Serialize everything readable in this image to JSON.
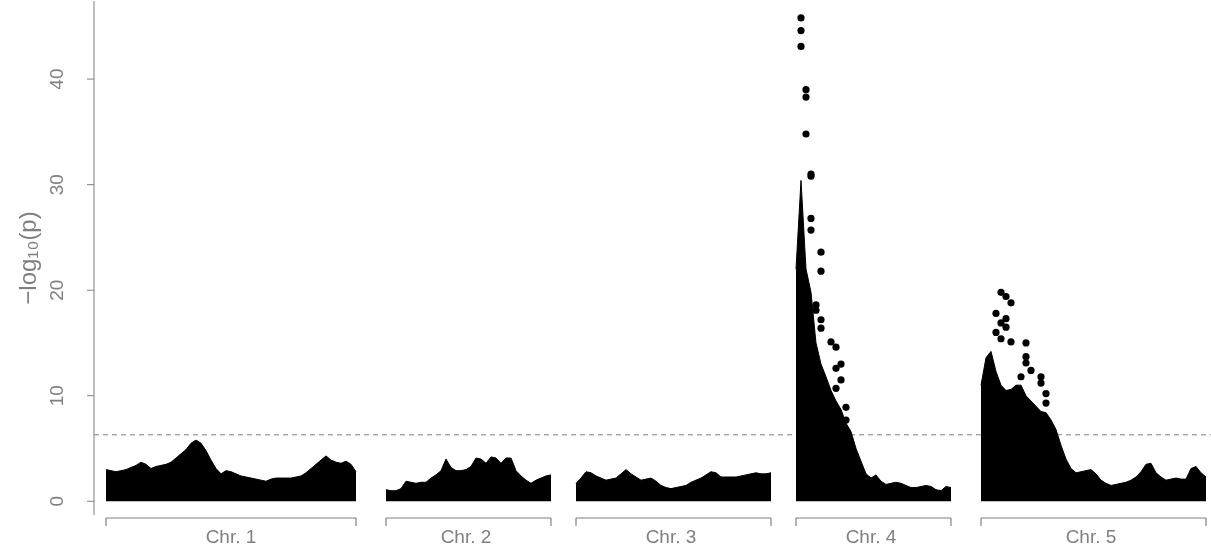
{
  "chart_data": {
    "type": "scatter",
    "ylabel": "−log₁₀(p)",
    "categories": [
      null,
      null,
      null,
      null,
      null,
      null,
      null,
      null,
      null,
      null,
      null,
      null,
      null,
      null,
      null,
      null,
      null,
      null,
      null,
      null,
      null,
      null,
      null,
      null,
      null,
      "Chr. 1",
      null,
      null,
      null,
      null,
      null,
      null,
      null,
      null,
      null,
      null,
      null,
      null,
      null,
      null,
      null,
      null,
      null,
      null,
      null,
      null,
      null,
      null,
      null,
      null,
      null,
      null,
      null,
      null,
      null,
      null,
      null,
      null,
      null,
      null,
      null,
      null,
      null,
      null,
      null,
      null,
      null,
      null,
      null,
      null,
      null,
      null,
      "Chr. 2",
      null,
      null,
      null,
      null,
      null,
      null,
      null,
      null,
      null,
      null,
      null,
      null,
      null,
      null,
      null,
      null,
      null,
      null,
      null,
      null,
      null,
      null,
      null,
      null,
      null,
      null,
      null,
      null,
      null,
      null,
      null,
      null,
      null,
      null,
      null,
      null,
      null,
      null,
      null,
      null,
      "Chr. 3",
      null,
      null,
      null,
      null,
      null,
      null,
      null,
      null,
      null,
      null,
      null,
      null,
      null,
      null,
      null,
      null,
      null,
      null,
      null,
      null,
      null,
      null,
      null,
      null,
      null,
      null,
      null,
      null,
      null,
      null,
      null,
      null,
      null,
      null,
      null,
      null,
      null,
      null,
      null,
      "Chr. 4",
      null,
      null,
      null,
      null,
      null,
      null,
      null,
      null,
      null,
      null,
      null,
      null,
      null,
      null,
      null,
      null,
      null,
      null,
      null,
      null,
      null,
      null,
      null,
      null,
      null,
      null,
      null,
      null,
      null,
      null,
      null,
      null,
      null,
      null,
      null,
      null,
      null,
      null,
      null,
      null,
      null,
      null,
      null,
      "Chr. 5",
      null,
      null,
      null,
      null,
      null,
      null,
      null,
      null,
      null,
      null,
      null,
      null,
      null,
      null,
      null,
      null,
      null,
      null,
      null,
      null,
      null,
      null,
      null
    ],
    "ylim": [
      -1.3,
      47.4
    ],
    "yticks": [
      0,
      10,
      20,
      30,
      40
    ],
    "ref_lines": [
      {
        "axis": "y",
        "value": 6.3,
        "color": "#808080",
        "line_style": "dashed"
      }
    ],
    "series": [
      {
        "type": "area",
        "color": "#000000",
        "values": [
          3.0,
          2.9,
          2.8,
          2.9,
          3.0,
          3.2,
          3.4,
          3.7,
          3.5,
          3.1,
          3.3,
          3.4,
          3.5,
          3.7,
          4.1,
          4.5,
          4.9,
          5.5,
          5.8,
          5.5,
          4.8,
          3.9,
          3.1,
          2.6,
          2.9,
          2.8,
          2.6,
          2.4,
          2.3,
          2.2,
          2.1,
          2.0,
          1.9,
          2.1,
          2.2,
          2.2,
          2.2,
          2.2,
          2.3,
          2.4,
          2.7,
          3.1,
          3.5,
          3.9,
          4.3,
          3.9,
          3.7,
          3.6,
          3.8,
          3.5,
          2.8,
          null,
          null,
          null,
          null,
          null,
          1.1,
          1.0,
          1.0,
          1.2,
          1.9,
          1.8,
          1.7,
          1.8,
          1.8,
          2.2,
          2.5,
          2.9,
          4.0,
          3.2,
          2.9,
          2.9,
          3.0,
          3.3,
          4.1,
          4.0,
          3.6,
          4.2,
          4.1,
          3.6,
          4.1,
          4.1,
          2.9,
          2.4,
          2.0,
          1.7,
          2.0,
          2.2,
          2.4,
          2.5,
          null,
          null,
          null,
          null,
          1.7,
          2.2,
          2.8,
          2.7,
          2.4,
          2.2,
          2.0,
          2.1,
          2.2,
          2.6,
          3.0,
          2.6,
          2.3,
          2.0,
          2.1,
          2.2,
          1.9,
          1.5,
          1.3,
          1.2,
          1.3,
          1.4,
          1.5,
          1.8,
          2.0,
          2.2,
          2.5,
          2.8,
          2.7,
          2.3,
          2.3,
          2.3,
          2.3,
          2.4,
          2.5,
          2.6,
          2.7,
          2.6,
          2.6,
          2.7,
          null,
          null,
          null,
          null,
          22.0,
          30.4,
          22.0,
          19.8,
          15.0,
          13.0,
          11.8,
          10.5,
          9.5,
          8.7,
          7.4,
          6.6,
          5.0,
          3.8,
          2.6,
          2.2,
          2.5,
          1.9,
          1.6,
          1.7,
          1.8,
          1.7,
          1.5,
          1.3,
          1.3,
          1.4,
          1.5,
          1.4,
          1.1,
          1.0,
          1.4,
          1.3,
          null,
          null,
          null,
          null,
          null,
          11.0,
          13.6,
          14.2,
          12.3,
          11.0,
          10.5,
          10.6,
          11.0,
          11.0,
          10.0,
          9.5,
          9.0,
          8.5,
          8.4,
          7.7,
          6.8,
          5.3,
          4.0,
          3.1,
          2.7,
          2.8,
          2.9,
          3.0,
          2.6,
          2.0,
          1.7,
          1.5,
          1.6,
          1.7,
          1.8,
          2.0,
          2.3,
          2.8,
          3.5,
          3.6,
          2.7,
          2.3,
          2.0,
          2.1,
          2.2,
          2.1,
          2.1,
          3.1,
          3.3,
          2.7,
          2.3
        ]
      },
      {
        "color": "#000000",
        "marker": "circle",
        "values": [
          null,
          null,
          null,
          null,
          null,
          null,
          null,
          null,
          null,
          null,
          null,
          null,
          null,
          null,
          null,
          null,
          null,
          null,
          null,
          null,
          null,
          null,
          null,
          null,
          null,
          null,
          null,
          null,
          null,
          null,
          null,
          null,
          null,
          null,
          null,
          null,
          null,
          null,
          null,
          null,
          null,
          null,
          null,
          null,
          null,
          null,
          null,
          null,
          null,
          null,
          null,
          null,
          null,
          null,
          null,
          null,
          null,
          null,
          null,
          null,
          null,
          null,
          null,
          null,
          null,
          null,
          null,
          null,
          null,
          null,
          null,
          null,
          null,
          null,
          null,
          null,
          null,
          null,
          null,
          null,
          null,
          null,
          null,
          null,
          null,
          null,
          null,
          null,
          null,
          null,
          null,
          null,
          null,
          null,
          null,
          null,
          null,
          null,
          null,
          null,
          null,
          null,
          null,
          null,
          null,
          null,
          null,
          null,
          null,
          null,
          null,
          null,
          null,
          null,
          null,
          null,
          null,
          null,
          null,
          null,
          null,
          null,
          null,
          null,
          null,
          null,
          null,
          null,
          null,
          null,
          null,
          null,
          null,
          null,
          null,
          null,
          null,
          null,
          null,
          45.8,
          39.0,
          31.0,
          18.6,
          23.6,
          null,
          15.1,
          14.6,
          13.0,
          8.9,
          null,
          null,
          null,
          null,
          null,
          null,
          null,
          null,
          null,
          null,
          null,
          null,
          null,
          null,
          null,
          null,
          null,
          null,
          null,
          null,
          null,
          null,
          null,
          null,
          null,
          null,
          null,
          null,
          null,
          17.8,
          19.8,
          19.4,
          18.8,
          null,
          11.8,
          15.0,
          12.4,
          null,
          11.8,
          10.2,
          null,
          null,
          null,
          null,
          null,
          null,
          null,
          null,
          null,
          null,
          null,
          null,
          null,
          null,
          null,
          null,
          null,
          null,
          null,
          null,
          null,
          null,
          null,
          null,
          null,
          null,
          null,
          null,
          null,
          null,
          null,
          null
        ]
      },
      {
        "color": "#000000",
        "marker": "circle",
        "values": [
          null,
          null,
          null,
          null,
          null,
          null,
          null,
          null,
          null,
          null,
          null,
          null,
          null,
          null,
          null,
          null,
          null,
          null,
          null,
          null,
          null,
          null,
          null,
          null,
          null,
          null,
          null,
          null,
          null,
          null,
          null,
          null,
          null,
          null,
          null,
          null,
          null,
          null,
          null,
          null,
          null,
          null,
          null,
          null,
          null,
          null,
          null,
          null,
          null,
          null,
          null,
          null,
          null,
          null,
          null,
          null,
          null,
          null,
          null,
          null,
          null,
          null,
          null,
          null,
          null,
          null,
          null,
          null,
          null,
          null,
          null,
          null,
          null,
          null,
          null,
          null,
          null,
          null,
          null,
          null,
          null,
          null,
          null,
          null,
          null,
          null,
          null,
          null,
          null,
          null,
          null,
          null,
          null,
          null,
          null,
          null,
          null,
          null,
          null,
          null,
          null,
          null,
          null,
          null,
          null,
          null,
          null,
          null,
          null,
          null,
          null,
          null,
          null,
          null,
          null,
          null,
          null,
          null,
          null,
          null,
          null,
          null,
          null,
          null,
          null,
          null,
          null,
          null,
          null,
          null,
          null,
          null,
          null,
          null,
          null,
          null,
          null,
          null,
          null,
          44.6,
          38.3,
          30.8,
          18.1,
          21.8,
          null,
          null,
          12.6,
          11.5,
          7.7,
          null,
          null,
          null,
          null,
          null,
          null,
          null,
          null,
          null,
          null,
          null,
          null,
          null,
          null,
          null,
          null,
          null,
          null,
          null,
          null,
          null,
          null,
          null,
          null,
          null,
          null,
          null,
          null,
          null,
          16.0,
          16.9,
          17.3,
          15.1,
          null,
          null,
          13.7,
          null,
          null,
          11.2,
          9.3,
          null,
          null,
          null,
          null,
          null,
          null,
          null,
          null,
          null,
          null,
          null,
          null,
          null,
          null,
          null,
          null,
          null,
          null,
          null,
          null,
          null,
          null,
          null,
          null,
          null,
          null,
          null,
          null,
          null,
          null,
          null,
          null
        ]
      },
      {
        "color": "#000000",
        "marker": "circle",
        "values": [
          null,
          null,
          null,
          null,
          null,
          null,
          null,
          null,
          null,
          null,
          null,
          null,
          null,
          null,
          null,
          null,
          null,
          null,
          null,
          null,
          null,
          null,
          null,
          null,
          null,
          null,
          null,
          null,
          null,
          null,
          null,
          null,
          null,
          null,
          null,
          null,
          null,
          null,
          null,
          null,
          null,
          null,
          null,
          null,
          null,
          null,
          null,
          null,
          null,
          null,
          null,
          null,
          null,
          null,
          null,
          null,
          null,
          null,
          null,
          null,
          null,
          null,
          null,
          null,
          null,
          null,
          null,
          null,
          null,
          null,
          null,
          null,
          null,
          null,
          null,
          null,
          null,
          null,
          null,
          null,
          null,
          null,
          null,
          null,
          null,
          null,
          null,
          null,
          null,
          null,
          null,
          null,
          null,
          null,
          null,
          null,
          null,
          null,
          null,
          null,
          null,
          null,
          null,
          null,
          null,
          null,
          null,
          null,
          null,
          null,
          null,
          null,
          null,
          null,
          null,
          null,
          null,
          null,
          null,
          null,
          null,
          null,
          null,
          null,
          null,
          null,
          null,
          null,
          null,
          null,
          null,
          null,
          null,
          null,
          null,
          null,
          null,
          null,
          null,
          43.1,
          34.8,
          26.8,
          null,
          17.2,
          null,
          null,
          10.7,
          null,
          null,
          null,
          null,
          null,
          null,
          null,
          null,
          null,
          null,
          null,
          null,
          null,
          null,
          null,
          null,
          null,
          null,
          null,
          null,
          null,
          null,
          null,
          null,
          null,
          null,
          null,
          null,
          null,
          null,
          null,
          null,
          15.4,
          16.5,
          null,
          null,
          null,
          13.1,
          null,
          null,
          null,
          null,
          null,
          null,
          null,
          null,
          null,
          null,
          null,
          null,
          null,
          null,
          null,
          null,
          null,
          null,
          null,
          null,
          null,
          null,
          null,
          null,
          null,
          null,
          null,
          null,
          null,
          null,
          null,
          null,
          null,
          null,
          null,
          null
        ]
      },
      {
        "color": "#000000",
        "marker": "circle",
        "values": [
          null,
          null,
          null,
          null,
          null,
          null,
          null,
          null,
          null,
          null,
          null,
          null,
          null,
          null,
          null,
          null,
          null,
          null,
          null,
          null,
          null,
          null,
          null,
          null,
          null,
          null,
          null,
          null,
          null,
          null,
          null,
          null,
          null,
          null,
          null,
          null,
          null,
          null,
          null,
          null,
          null,
          null,
          null,
          null,
          null,
          null,
          null,
          null,
          null,
          null,
          null,
          null,
          null,
          null,
          null,
          null,
          null,
          null,
          null,
          null,
          null,
          null,
          null,
          null,
          null,
          null,
          null,
          null,
          null,
          null,
          null,
          null,
          null,
          null,
          null,
          null,
          null,
          null,
          null,
          null,
          null,
          null,
          null,
          null,
          null,
          null,
          null,
          null,
          null,
          null,
          null,
          null,
          null,
          null,
          null,
          null,
          null,
          null,
          null,
          null,
          null,
          null,
          null,
          null,
          null,
          null,
          null,
          null,
          null,
          null,
          null,
          null,
          null,
          null,
          null,
          null,
          null,
          null,
          null,
          null,
          null,
          null,
          null,
          null,
          null,
          null,
          null,
          null,
          null,
          null,
          null,
          null,
          null,
          null,
          null,
          null,
          null,
          null,
          null,
          null,
          null,
          25.7,
          null,
          16.4,
          null,
          null,
          null,
          null,
          null,
          null,
          null,
          null,
          null,
          null,
          null,
          null,
          null,
          null,
          null,
          null,
          null,
          null,
          null,
          null,
          null,
          null,
          null,
          null,
          null,
          null,
          null,
          null,
          null,
          null,
          null,
          null,
          null,
          null,
          null,
          null,
          null,
          null,
          null,
          null,
          null,
          null,
          null,
          null,
          null,
          null,
          null,
          null,
          null,
          null,
          null,
          null,
          null,
          null,
          null,
          null,
          null,
          null,
          null,
          null,
          null,
          null,
          null,
          null,
          null,
          null,
          null,
          null,
          null,
          null,
          null,
          null,
          null,
          null,
          null,
          null,
          null
        ]
      }
    ]
  }
}
